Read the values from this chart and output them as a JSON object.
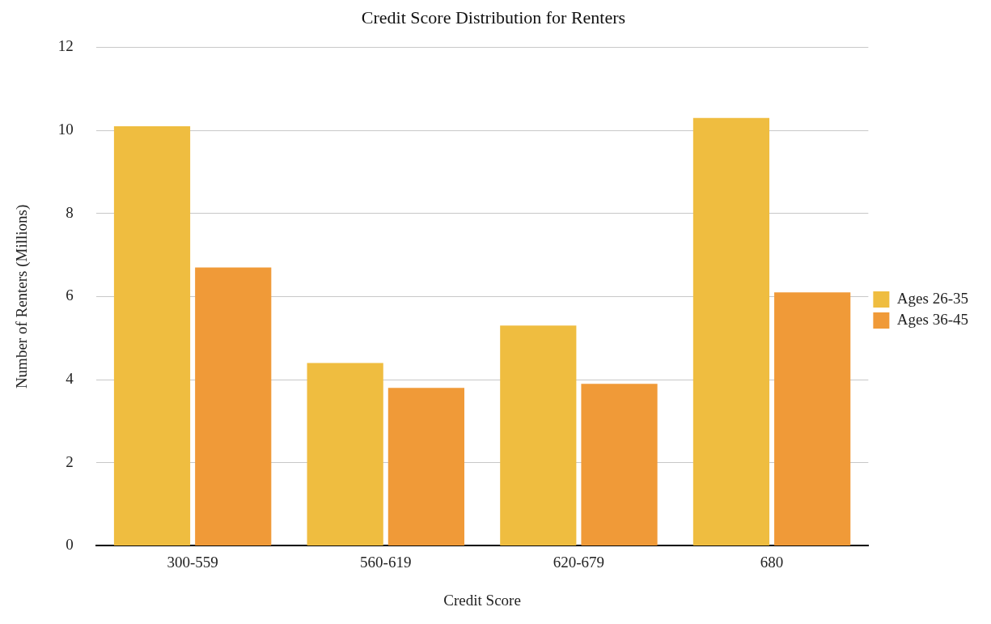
{
  "chart_data": {
    "type": "bar",
    "title": "Credit Score Distribution for Renters",
    "xlabel": "Credit Score",
    "ylabel": "Number of Renters (Millions)",
    "categories": [
      "300-559",
      "560-619",
      "620-679",
      "680"
    ],
    "series": [
      {
        "name": "Ages 26-35",
        "color": "#efbd40",
        "values": [
          10.1,
          4.4,
          5.3,
          10.3
        ]
      },
      {
        "name": "Ages 36-45",
        "color": "#f09a38",
        "values": [
          6.7,
          3.8,
          3.9,
          6.1
        ]
      }
    ],
    "ylim": [
      0,
      12
    ],
    "yticks": [
      0,
      2,
      4,
      6,
      8,
      10,
      12
    ],
    "grid": "y",
    "legend": "right"
  }
}
